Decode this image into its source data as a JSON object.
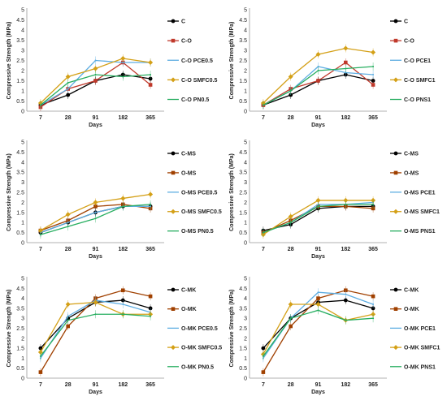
{
  "chart_data": [
    {
      "type": "line",
      "x": [
        "7",
        "28",
        "91",
        "182",
        "365"
      ],
      "xlabel": "Days",
      "ylabel": "Compressive Strength (MPa)",
      "ylim": [
        0,
        5
      ],
      "yticks": [
        "0",
        "0.5",
        "1",
        "1.5",
        "2",
        "2.5",
        "3",
        "3.5",
        "4",
        "4.5",
        "5"
      ],
      "legend_position": "right",
      "series": [
        {
          "name": "C",
          "color": "#000000",
          "marker": "circle",
          "values": [
            0.3,
            0.8,
            1.5,
            1.8,
            1.6
          ]
        },
        {
          "name": "C-O",
          "color": "#c0392b",
          "marker": "square",
          "values": [
            0.2,
            1.1,
            1.5,
            2.4,
            1.3
          ]
        },
        {
          "name": "C-O PCE0.5",
          "color": "#5dade2",
          "marker": "none",
          "values": [
            0.3,
            1.1,
            2.5,
            2.4,
            2.4
          ]
        },
        {
          "name": "C-O SMFC0.5",
          "color": "#d4a017",
          "marker": "diamond",
          "values": [
            0.4,
            1.7,
            2.1,
            2.6,
            2.4
          ]
        },
        {
          "name": "C-O PN0.5",
          "color": "#27ae60",
          "marker": "none",
          "values": [
            0.3,
            1.4,
            1.8,
            1.7,
            1.8
          ]
        }
      ]
    },
    {
      "type": "line",
      "x": [
        "7",
        "28",
        "91",
        "182",
        "365"
      ],
      "xlabel": "Days",
      "ylabel": "Compressive Strength (MPa)",
      "ylim": [
        0,
        5
      ],
      "yticks": [
        "0",
        "0.5",
        "1",
        "1.5",
        "2",
        "2.5",
        "3",
        "3.5",
        "4",
        "4.5",
        "5"
      ],
      "legend_position": "right",
      "series": [
        {
          "name": "C",
          "color": "#000000",
          "marker": "circle",
          "values": [
            0.3,
            0.8,
            1.5,
            1.8,
            1.5
          ]
        },
        {
          "name": "C-O",
          "color": "#c0392b",
          "marker": "square",
          "values": [
            0.3,
            1.1,
            1.5,
            2.4,
            1.3
          ]
        },
        {
          "name": "C-O PCE1",
          "color": "#5dade2",
          "marker": "none",
          "values": [
            0.3,
            1.0,
            2.2,
            1.9,
            1.8
          ]
        },
        {
          "name": "C-O SMFC1",
          "color": "#d4a017",
          "marker": "diamond",
          "values": [
            0.4,
            1.7,
            2.8,
            3.1,
            2.9
          ]
        },
        {
          "name": "C-O PNS1",
          "color": "#27ae60",
          "marker": "none",
          "values": [
            0.3,
            1.0,
            2.0,
            2.1,
            2.2
          ]
        }
      ]
    },
    {
      "type": "line",
      "x": [
        "7",
        "28",
        "91",
        "182",
        "365"
      ],
      "xlabel": "Days",
      "ylabel": "Compressive Strength (MPa)",
      "ylim": [
        0,
        5
      ],
      "yticks": [
        "0",
        "0.5",
        "1",
        "1.5",
        "2",
        "2.5",
        "3",
        "3.5",
        "4",
        "4.5",
        "5"
      ],
      "legend_position": "right",
      "series": [
        {
          "name": "C-MS",
          "color": "#000000",
          "marker": "circle",
          "values": [
            0.5,
            1.0,
            1.5,
            1.8,
            1.8
          ]
        },
        {
          "name": "O-MS",
          "color": "#a04000",
          "marker": "square",
          "values": [
            0.6,
            1.1,
            1.8,
            1.9,
            1.7
          ]
        },
        {
          "name": "O-MS PCE0.5",
          "color": "#5dade2",
          "marker": "none",
          "values": [
            0.5,
            1.0,
            1.5,
            1.8,
            1.8
          ]
        },
        {
          "name": "O-MS SMFC0.5",
          "color": "#d4a017",
          "marker": "diamond",
          "values": [
            0.6,
            1.4,
            2.0,
            2.2,
            2.4
          ]
        },
        {
          "name": "O-MS PN0.5",
          "color": "#27ae60",
          "marker": "none",
          "values": [
            0.4,
            0.8,
            1.2,
            1.8,
            1.9
          ]
        }
      ]
    },
    {
      "type": "line",
      "x": [
        "7",
        "28",
        "91",
        "182",
        "365"
      ],
      "xlabel": "Days",
      "ylabel": "Compressive Strength (MPa)",
      "ylim": [
        0,
        5
      ],
      "yticks": [
        "0",
        "0.5",
        "1",
        "1.5",
        "2",
        "2.5",
        "3",
        "3.5",
        "4",
        "4.5",
        "5"
      ],
      "legend_position": "right",
      "series": [
        {
          "name": "C-MS",
          "color": "#000000",
          "marker": "circle",
          "values": [
            0.6,
            0.9,
            1.7,
            1.8,
            1.8
          ]
        },
        {
          "name": "O-MS",
          "color": "#a04000",
          "marker": "square",
          "values": [
            0.5,
            1.1,
            1.8,
            1.8,
            1.7
          ]
        },
        {
          "name": "O-MS PCE1",
          "color": "#5dade2",
          "marker": "none",
          "values": [
            0.5,
            1.0,
            1.9,
            1.9,
            2.0
          ]
        },
        {
          "name": "O-MS SMFC1",
          "color": "#d4a017",
          "marker": "diamond",
          "values": [
            0.4,
            1.3,
            2.1,
            2.1,
            2.1
          ]
        },
        {
          "name": "O-MS PNS1",
          "color": "#27ae60",
          "marker": "none",
          "values": [
            0.5,
            1.0,
            1.8,
            1.9,
            1.9
          ]
        }
      ]
    },
    {
      "type": "line",
      "x": [
        "7",
        "28",
        "91",
        "182",
        "365"
      ],
      "xlabel": "Days",
      "ylabel": "Compressive Strength (MPa)",
      "ylim": [
        0,
        5
      ],
      "yticks": [
        "0",
        "0.5",
        "1",
        "1.5",
        "2",
        "2.5",
        "3",
        "3.5",
        "4",
        "4.5",
        "5"
      ],
      "legend_position": "right",
      "series": [
        {
          "name": "C-MK",
          "color": "#000000",
          "marker": "circle",
          "values": [
            1.5,
            3.0,
            3.8,
            3.9,
            3.5
          ]
        },
        {
          "name": "O-MK",
          "color": "#a04000",
          "marker": "square",
          "values": [
            0.3,
            2.6,
            4.0,
            4.4,
            4.1
          ]
        },
        {
          "name": "O-MK PCE0.5",
          "color": "#5dade2",
          "marker": "none",
          "values": [
            1.0,
            3.1,
            3.9,
            3.7,
            3.3
          ]
        },
        {
          "name": "O-MK SMFC0.5",
          "color": "#d4a017",
          "marker": "diamond",
          "values": [
            1.3,
            3.7,
            3.8,
            3.2,
            3.2
          ]
        },
        {
          "name": "O-MK PN0.5",
          "color": "#27ae60",
          "marker": "none",
          "values": [
            1.1,
            2.9,
            3.2,
            3.2,
            3.1
          ]
        }
      ]
    },
    {
      "type": "line",
      "x": [
        "7",
        "28",
        "91",
        "182",
        "365"
      ],
      "xlabel": "Days",
      "ylabel": "Compressive Strength (MPa)",
      "ylim": [
        0,
        5
      ],
      "yticks": [
        "0",
        "0.5",
        "1",
        "1.5",
        "2",
        "2.5",
        "3",
        "3.5",
        "4",
        "4.5",
        "5"
      ],
      "legend_position": "right",
      "series": [
        {
          "name": "C-MK",
          "color": "#000000",
          "marker": "circle",
          "values": [
            1.5,
            3.0,
            3.8,
            3.9,
            3.5
          ]
        },
        {
          "name": "O-MK",
          "color": "#a04000",
          "marker": "square",
          "values": [
            0.3,
            2.6,
            4.0,
            4.4,
            4.1
          ]
        },
        {
          "name": "O-MK PCE1",
          "color": "#5dade2",
          "marker": "none",
          "values": [
            1.0,
            3.0,
            4.3,
            4.2,
            3.7
          ]
        },
        {
          "name": "O-MK SMFC1",
          "color": "#d4a017",
          "marker": "diamond",
          "values": [
            1.2,
            3.7,
            3.7,
            2.9,
            3.2
          ]
        },
        {
          "name": "O-MK PNS1",
          "color": "#27ae60",
          "marker": "none",
          "values": [
            1.1,
            3.0,
            3.4,
            2.9,
            3.0
          ]
        }
      ]
    }
  ]
}
